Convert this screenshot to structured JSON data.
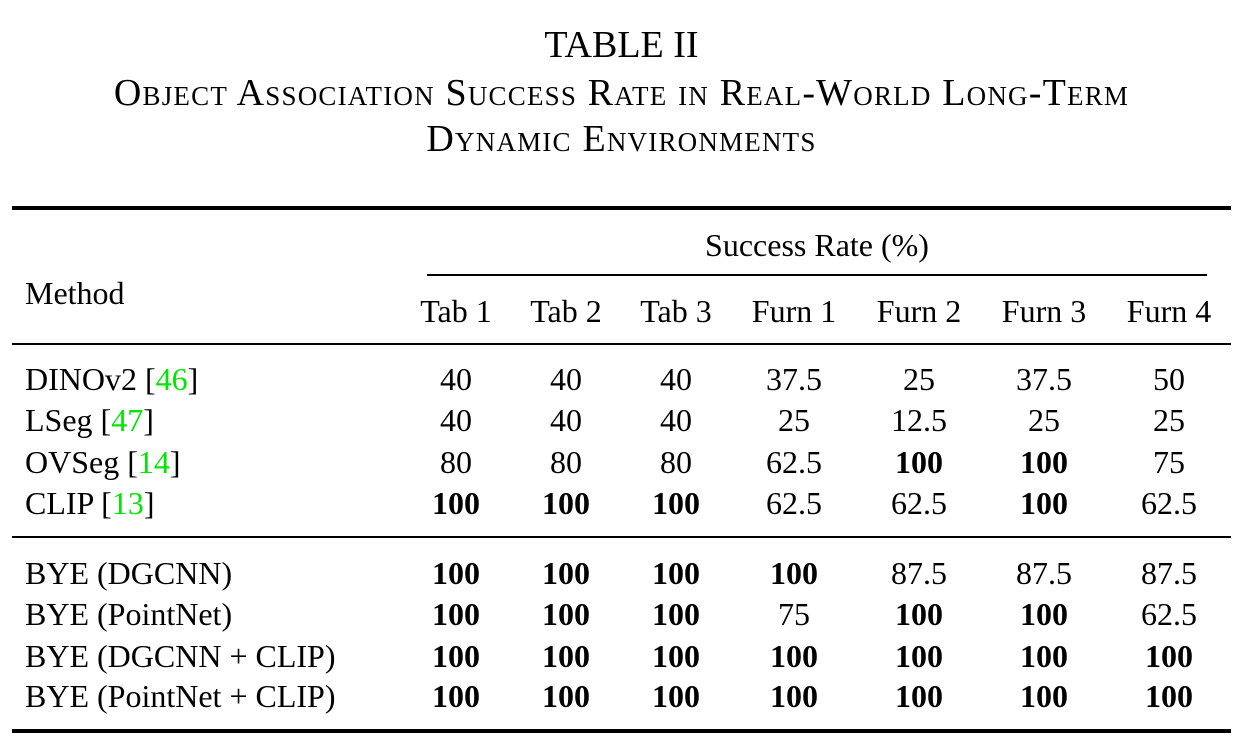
{
  "caption": {
    "number": "TABLE II",
    "line1": "Object Association Success Rate in Real-World Long-Term",
    "line2": "Dynamic Environments"
  },
  "header": {
    "method": "Method",
    "group": "Success Rate (%)",
    "columns": [
      "Tab 1",
      "Tab 2",
      "Tab 3",
      "Furn 1",
      "Furn 2",
      "Furn 3",
      "Furn 4"
    ]
  },
  "rows": [
    {
      "method": "DINOv2 [",
      "ref": "46",
      "close": "]",
      "values": [
        "40",
        "40",
        "40",
        "37.5",
        "25",
        "37.5",
        "50"
      ],
      "bold": [
        false,
        false,
        false,
        false,
        false,
        false,
        false
      ]
    },
    {
      "method": "LSeg [",
      "ref": "47",
      "close": "]",
      "values": [
        "40",
        "40",
        "40",
        "25",
        "12.5",
        "25",
        "25"
      ],
      "bold": [
        false,
        false,
        false,
        false,
        false,
        false,
        false
      ]
    },
    {
      "method": "OVSeg [",
      "ref": "14",
      "close": "]",
      "values": [
        "80",
        "80",
        "80",
        "62.5",
        "100",
        "100",
        "75"
      ],
      "bold": [
        false,
        false,
        false,
        false,
        true,
        true,
        false
      ]
    },
    {
      "method": "CLIP [",
      "ref": "13",
      "close": "]",
      "values": [
        "100",
        "100",
        "100",
        "62.5",
        "62.5",
        "100",
        "62.5"
      ],
      "bold": [
        true,
        true,
        true,
        false,
        false,
        true,
        false
      ]
    },
    {
      "method": "BYE (DGCNN)",
      "ref": "",
      "close": "",
      "values": [
        "100",
        "100",
        "100",
        "100",
        "87.5",
        "87.5",
        "87.5"
      ],
      "bold": [
        true,
        true,
        true,
        true,
        false,
        false,
        false
      ]
    },
    {
      "method": "BYE (PointNet)",
      "ref": "",
      "close": "",
      "values": [
        "100",
        "100",
        "100",
        "75",
        "100",
        "100",
        "62.5"
      ],
      "bold": [
        true,
        true,
        true,
        false,
        true,
        true,
        false
      ]
    },
    {
      "method": "BYE (DGCNN + CLIP)",
      "ref": "",
      "close": "",
      "values": [
        "100",
        "100",
        "100",
        "100",
        "100",
        "100",
        "100"
      ],
      "bold": [
        true,
        true,
        true,
        true,
        true,
        true,
        true
      ]
    },
    {
      "method": "BYE (PointNet + CLIP)",
      "ref": "",
      "close": "",
      "values": [
        "100",
        "100",
        "100",
        "100",
        "100",
        "100",
        "100"
      ],
      "bold": [
        true,
        true,
        true,
        true,
        true,
        true,
        true
      ]
    }
  ]
}
